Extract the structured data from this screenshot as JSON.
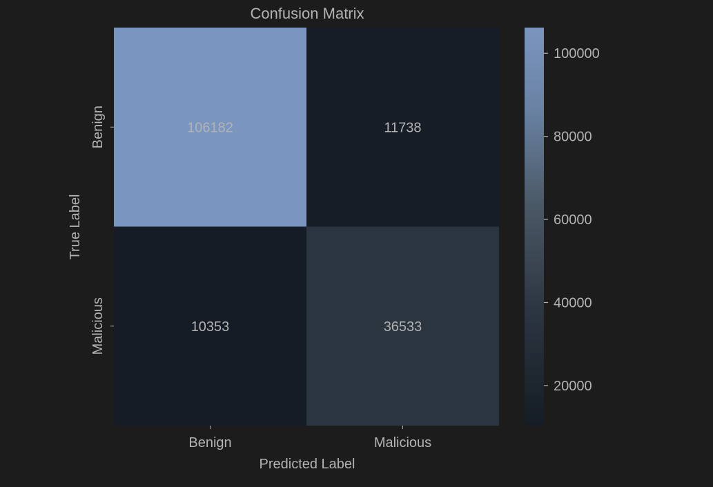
{
  "chart_data": {
    "type": "heatmap",
    "title": "Confusion Matrix",
    "xlabel": "Predicted Label",
    "ylabel": "True Label",
    "x_categories": [
      "Benign",
      "Malicious"
    ],
    "y_categories": [
      "Benign",
      "Malicious"
    ],
    "values": [
      [
        106182,
        11738
      ],
      [
        10353,
        36533
      ]
    ],
    "colorbar": {
      "range": [
        10353,
        106182
      ],
      "ticks": [
        20000,
        40000,
        60000,
        80000,
        100000
      ],
      "colors": [
        "#151c26",
        "#2d3741",
        "#4a5865",
        "#6a83a4",
        "#7a95bf"
      ]
    },
    "colors": {
      "background": "#1c1c1c",
      "text": "#b3b3b3"
    }
  }
}
